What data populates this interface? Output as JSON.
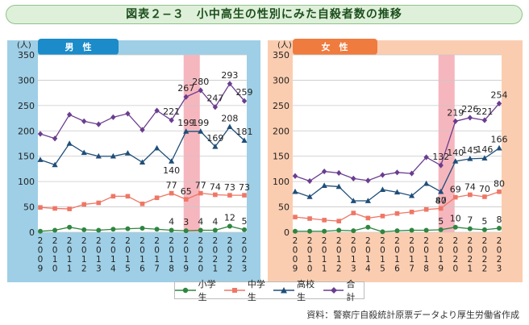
{
  "title": "図表２−３　小中高生の性別にみた自殺者数の推移",
  "source": "資料：警察庁自殺統計原票データより厚生労働省作成",
  "legend": [
    {
      "key": "elem",
      "label": "小学生",
      "color": "#2e8540",
      "marker": "circle"
    },
    {
      "key": "jhs",
      "label": "中学生",
      "color": "#ee7766",
      "marker": "square"
    },
    {
      "key": "hs",
      "label": "高校生",
      "color": "#1f4e79",
      "marker": "triangle"
    },
    {
      "key": "total",
      "label": "合計",
      "color": "#6a3d8f",
      "marker": "diamond"
    }
  ],
  "chart_data": [
    {
      "type": "line",
      "title": "男　性",
      "unit": "(人)",
      "panel_color": "#9ecfe6",
      "tab_color": "#1b8bc9",
      "highlight": [
        "2019",
        "2020"
      ],
      "ylim": [
        0,
        350
      ],
      "yticks": [
        0,
        50,
        100,
        150,
        200,
        250,
        300,
        350
      ],
      "x": [
        "2009",
        "2010",
        "2011",
        "2012",
        "2013",
        "2014",
        "2015",
        "2016",
        "2017",
        "2018",
        "2019",
        "2020",
        "2021",
        "2022",
        "2023"
      ],
      "series": [
        {
          "key": "total",
          "name": "合計",
          "values": [
            194,
            185,
            232,
            219,
            213,
            227,
            234,
            202,
            240,
            221,
            267,
            280,
            247,
            293,
            259
          ],
          "labels": {
            "9": "221",
            "10": "267",
            "11": "280",
            "12": "247",
            "13": "293",
            "14": "259"
          }
        },
        {
          "key": "hs",
          "name": "高校生",
          "values": [
            143,
            133,
            175,
            157,
            150,
            150,
            156,
            138,
            166,
            140,
            199,
            199,
            169,
            208,
            181
          ],
          "labels": {
            "9": "140",
            "10": "199",
            "11": "199",
            "12": "169",
            "13": "208",
            "14": "181"
          }
        },
        {
          "key": "jhs",
          "name": "中学生",
          "values": [
            49,
            47,
            46,
            55,
            58,
            71,
            71,
            56,
            68,
            77,
            65,
            77,
            74,
            73,
            73
          ],
          "labels": {
            "9": "77",
            "10": "65",
            "11": "77",
            "12": "74",
            "13": "73",
            "14": "73"
          }
        },
        {
          "key": "elem",
          "name": "小学生",
          "values": [
            2,
            4,
            10,
            5,
            4,
            6,
            7,
            8,
            6,
            4,
            3,
            4,
            4,
            12,
            5
          ],
          "labels": {
            "9": "4",
            "10": "3",
            "11": "4",
            "12": "4",
            "13": "12",
            "14": "5"
          }
        }
      ]
    },
    {
      "type": "line",
      "title": "女　性",
      "unit": "(人)",
      "panel_color": "#fbcdb0",
      "tab_color": "#f07b3f",
      "highlight": [
        "2019",
        "2020"
      ],
      "ylim": [
        0,
        350
      ],
      "yticks": [
        0,
        50,
        100,
        150,
        200,
        250,
        300,
        350
      ],
      "x": [
        "2009",
        "2010",
        "2011",
        "2012",
        "2013",
        "2014",
        "2015",
        "2016",
        "2017",
        "2018",
        "2019",
        "2020",
        "2021",
        "2022",
        "2023"
      ],
      "series": [
        {
          "key": "total",
          "name": "合計",
          "values": [
            111,
            101,
            120,
            117,
            106,
            102,
            113,
            118,
            116,
            148,
            132,
            219,
            226,
            221,
            254
          ],
          "labels": {
            "10": "132",
            "11": "219",
            "12": "226",
            "13": "221",
            "14": "254"
          }
        },
        {
          "key": "hs",
          "name": "高校生",
          "values": [
            80,
            70,
            92,
            90,
            62,
            62,
            84,
            79,
            72,
            96,
            80,
            140,
            145,
            146,
            166
          ],
          "labels": {
            "10": "80",
            "11": "140",
            "12": "145",
            "13": "146",
            "14": "166"
          }
        },
        {
          "key": "jhs",
          "name": "中学生",
          "values": [
            30,
            27,
            24,
            22,
            38,
            28,
            32,
            37,
            40,
            45,
            47,
            69,
            74,
            70,
            80
          ],
          "labels": {
            "10": "47",
            "11": "69",
            "12": "74",
            "13": "70",
            "14": "80"
          }
        },
        {
          "key": "elem",
          "name": "小学生",
          "values": [
            2,
            2,
            2,
            4,
            3,
            10,
            1,
            3,
            4,
            4,
            5,
            10,
            7,
            5,
            8
          ],
          "labels": {
            "10": "5",
            "11": "10",
            "12": "7",
            "13": "5",
            "14": "8"
          }
        }
      ]
    }
  ]
}
